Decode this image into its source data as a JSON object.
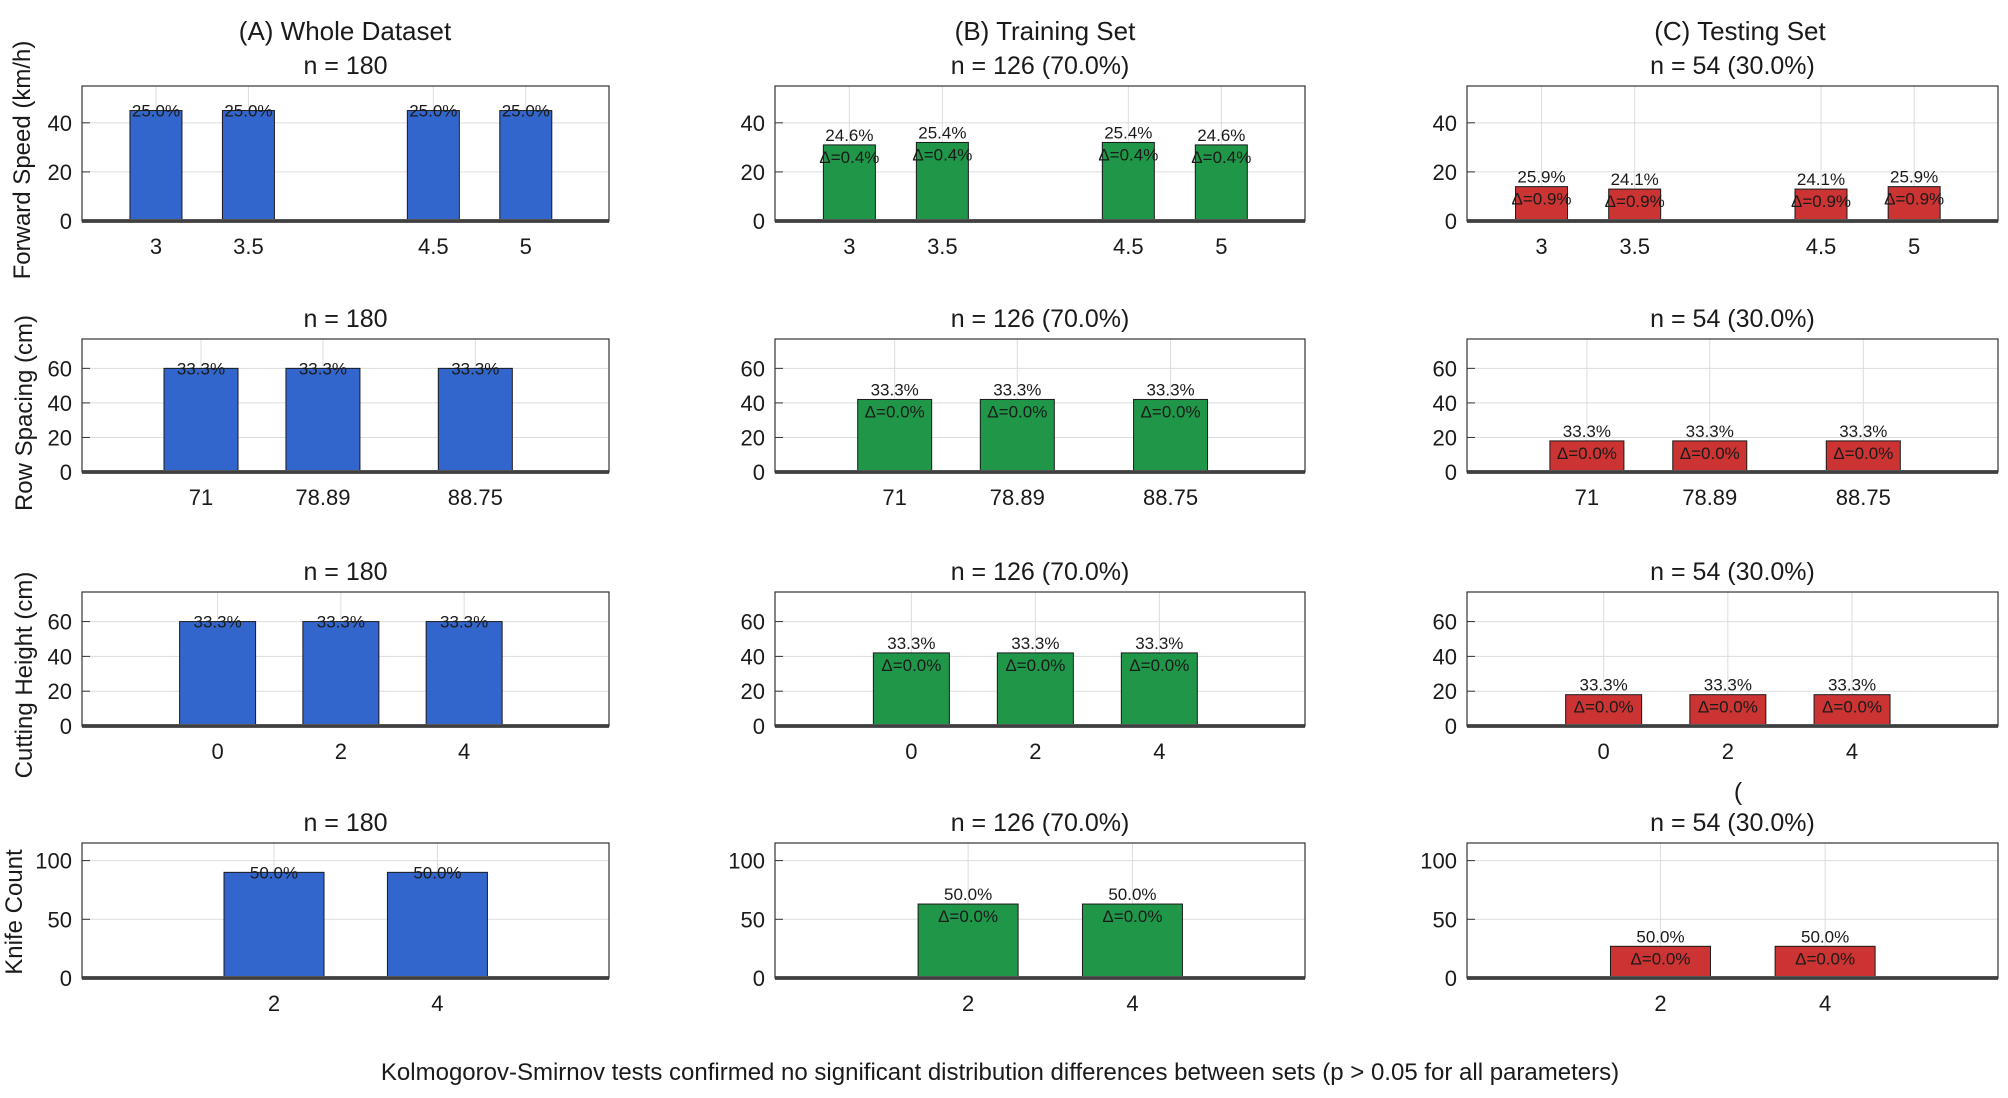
{
  "columns": [
    {
      "title": "(A) Whole Dataset",
      "color": "#3366cc"
    },
    {
      "title": "(B) Training Set",
      "color": "#1f9648"
    },
    {
      "title": "(C) Testing Set",
      "color": "#cc3333"
    }
  ],
  "rows": [
    {
      "label": "Forward Speed (km/h)"
    },
    {
      "label": "Row Spacing (cm)"
    },
    {
      "label": "Cutting Height (cm)"
    },
    {
      "label": "Knife Count"
    }
  ],
  "stray_mark": "(",
  "footer": "Kolmogorov-Smirnov tests confirmed no significant distribution differences between sets (p > 0.05 for all parameters)",
  "chart_data": [
    {
      "type": "bar",
      "row": 0,
      "col": 0,
      "title": "n = 180",
      "categories": [
        "3",
        "3.5",
        "4.5",
        "5"
      ],
      "x": [
        3,
        3.5,
        4.5,
        5
      ],
      "values": [
        45,
        45,
        45,
        45
      ],
      "labels": [
        "25.0%",
        "25.0%",
        "25.0%",
        "25.0%"
      ],
      "deltas": [],
      "xlim": [
        2.6,
        5.45
      ],
      "ylim": [
        0,
        55
      ],
      "yticks": [
        0,
        20,
        40
      ],
      "ylabel": "Forward Speed (km/h)"
    },
    {
      "type": "bar",
      "row": 0,
      "col": 1,
      "title": "n = 126 (70.0%)",
      "categories": [
        "3",
        "3.5",
        "4.5",
        "5"
      ],
      "x": [
        3,
        3.5,
        4.5,
        5
      ],
      "values": [
        31,
        32,
        32,
        31
      ],
      "labels": [
        "24.6%",
        "25.4%",
        "25.4%",
        "24.6%"
      ],
      "deltas": [
        "Δ=0.4%",
        "Δ=0.4%",
        "Δ=0.4%",
        "Δ=0.4%"
      ],
      "xlim": [
        2.6,
        5.45
      ],
      "ylim": [
        0,
        55
      ],
      "yticks": [
        0,
        20,
        40
      ],
      "ylabel": ""
    },
    {
      "type": "bar",
      "row": 0,
      "col": 2,
      "title": "n = 54 (30.0%)",
      "categories": [
        "3",
        "3.5",
        "4.5",
        "5"
      ],
      "x": [
        3,
        3.5,
        4.5,
        5
      ],
      "values": [
        14,
        13,
        13,
        14
      ],
      "labels": [
        "25.9%",
        "24.1%",
        "24.1%",
        "25.9%"
      ],
      "deltas": [
        "Δ=0.9%",
        "Δ=0.9%",
        "Δ=0.9%",
        "Δ=0.9%"
      ],
      "xlim": [
        2.6,
        5.45
      ],
      "ylim": [
        0,
        55
      ],
      "yticks": [
        0,
        20,
        40
      ],
      "ylabel": ""
    },
    {
      "type": "bar",
      "row": 1,
      "col": 0,
      "title": "n = 180",
      "categories": [
        "71",
        "78.89",
        "88.75"
      ],
      "x": [
        71,
        78.89,
        88.75
      ],
      "values": [
        60,
        60,
        60
      ],
      "labels": [
        "33.3%",
        "33.3%",
        "33.3%"
      ],
      "deltas": [],
      "xlim": [
        63.3,
        97.4
      ],
      "ylim": [
        0,
        77
      ],
      "yticks": [
        0,
        20,
        40,
        60
      ],
      "ylabel": "Row Spacing (cm)"
    },
    {
      "type": "bar",
      "row": 1,
      "col": 1,
      "title": "n = 126 (70.0%)",
      "categories": [
        "71",
        "78.89",
        "88.75"
      ],
      "x": [
        71,
        78.89,
        88.75
      ],
      "values": [
        42,
        42,
        42
      ],
      "labels": [
        "33.3%",
        "33.3%",
        "33.3%"
      ],
      "deltas": [
        "Δ=0.0%",
        "Δ=0.0%",
        "Δ=0.0%"
      ],
      "xlim": [
        63.3,
        97.4
      ],
      "ylim": [
        0,
        77
      ],
      "yticks": [
        0,
        20,
        40,
        60
      ],
      "ylabel": ""
    },
    {
      "type": "bar",
      "row": 1,
      "col": 2,
      "title": "n = 54 (30.0%)",
      "categories": [
        "71",
        "78.89",
        "88.75"
      ],
      "x": [
        71,
        78.89,
        88.75
      ],
      "values": [
        18,
        18,
        18
      ],
      "labels": [
        "33.3%",
        "33.3%",
        "33.3%"
      ],
      "deltas": [
        "Δ=0.0%",
        "Δ=0.0%",
        "Δ=0.0%"
      ],
      "xlim": [
        63.3,
        97.4
      ],
      "ylim": [
        0,
        77
      ],
      "yticks": [
        0,
        20,
        40,
        60
      ],
      "ylabel": ""
    },
    {
      "type": "bar",
      "row": 2,
      "col": 0,
      "title": "n = 180",
      "categories": [
        "0",
        "2",
        "4"
      ],
      "x": [
        0,
        2,
        4
      ],
      "values": [
        60,
        60,
        60
      ],
      "labels": [
        "33.3%",
        "33.3%",
        "33.3%"
      ],
      "deltas": [],
      "xlim": [
        -2.2,
        6.35
      ],
      "ylim": [
        0,
        77
      ],
      "yticks": [
        0,
        20,
        40,
        60
      ],
      "ylabel": "Cutting Height (cm)"
    },
    {
      "type": "bar",
      "row": 2,
      "col": 1,
      "title": "n = 126 (70.0%)",
      "categories": [
        "0",
        "2",
        "4"
      ],
      "x": [
        0,
        2,
        4
      ],
      "values": [
        42,
        42,
        42
      ],
      "labels": [
        "33.3%",
        "33.3%",
        "33.3%"
      ],
      "deltas": [
        "Δ=0.0%",
        "Δ=0.0%",
        "Δ=0.0%"
      ],
      "xlim": [
        -2.2,
        6.35
      ],
      "ylim": [
        0,
        77
      ],
      "yticks": [
        0,
        20,
        40,
        60
      ],
      "ylabel": ""
    },
    {
      "type": "bar",
      "row": 2,
      "col": 2,
      "title": "n = 54 (30.0%)",
      "categories": [
        "0",
        "2",
        "4"
      ],
      "x": [
        0,
        2,
        4
      ],
      "values": [
        18,
        18,
        18
      ],
      "labels": [
        "33.3%",
        "33.3%",
        "33.3%"
      ],
      "deltas": [
        "Δ=0.0%",
        "Δ=0.0%",
        "Δ=0.0%"
      ],
      "xlim": [
        -2.2,
        6.35
      ],
      "ylim": [
        0,
        77
      ],
      "yticks": [
        0,
        20,
        40,
        60
      ],
      "ylabel": ""
    },
    {
      "type": "bar",
      "row": 3,
      "col": 0,
      "title": "n = 180",
      "categories": [
        "2",
        "4"
      ],
      "x": [
        2,
        4
      ],
      "values": [
        90,
        90
      ],
      "labels": [
        "50.0%",
        "50.0%"
      ],
      "deltas": [],
      "xlim": [
        -0.35,
        6.1
      ],
      "ylim": [
        0,
        115
      ],
      "yticks": [
        0,
        50,
        100
      ],
      "ylabel": "Knife Count"
    },
    {
      "type": "bar",
      "row": 3,
      "col": 1,
      "title": "n = 126 (70.0%)",
      "categories": [
        "2",
        "4"
      ],
      "x": [
        2,
        4
      ],
      "values": [
        63,
        63
      ],
      "labels": [
        "50.0%",
        "50.0%"
      ],
      "deltas": [
        "Δ=0.0%",
        "Δ=0.0%"
      ],
      "xlim": [
        -0.35,
        6.1
      ],
      "ylim": [
        0,
        115
      ],
      "yticks": [
        0,
        50,
        100
      ],
      "ylabel": ""
    },
    {
      "type": "bar",
      "row": 3,
      "col": 2,
      "title": "n = 54 (30.0%)",
      "categories": [
        "2",
        "4"
      ],
      "x": [
        2,
        4
      ],
      "values": [
        27,
        27
      ],
      "labels": [
        "50.0%",
        "50.0%"
      ],
      "deltas": [
        "Δ=0.0%",
        "Δ=0.0%"
      ],
      "xlim": [
        -0.35,
        6.1
      ],
      "ylim": [
        0,
        115
      ],
      "yticks": [
        0,
        50,
        100
      ],
      "ylabel": ""
    }
  ]
}
